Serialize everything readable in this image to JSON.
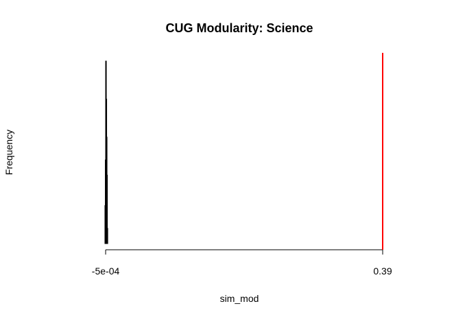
{
  "chart_data": {
    "type": "bar",
    "title": "CUG Modularity:  Science",
    "xlabel": "sim_mod",
    "ylabel": "Frequency",
    "xlim": [
      -0.0015,
      0.39
    ],
    "x_ticks": [
      {
        "value": -0.0005,
        "label": "-5e-04"
      },
      {
        "value": 0.39,
        "label": "0.39"
      }
    ],
    "bins": [
      {
        "x0": -0.0015,
        "x1": -0.001,
        "count": 5
      },
      {
        "x0": -0.001,
        "x1": -0.0005,
        "count": 11
      },
      {
        "x0": -0.0005,
        "x1": 0.0,
        "count": 24
      },
      {
        "x0": 0.0,
        "x1": 0.0005,
        "count": 19
      },
      {
        "x0": 0.0005,
        "x1": 0.001,
        "count": 14
      },
      {
        "x0": 0.001,
        "x1": 0.0015,
        "count": 9
      },
      {
        "x0": 0.0015,
        "x1": 0.002,
        "count": 2
      }
    ],
    "ymax": 24,
    "reference_line": {
      "value": 0.39,
      "color": "#ff0000"
    },
    "grid": false,
    "legend": "none"
  }
}
